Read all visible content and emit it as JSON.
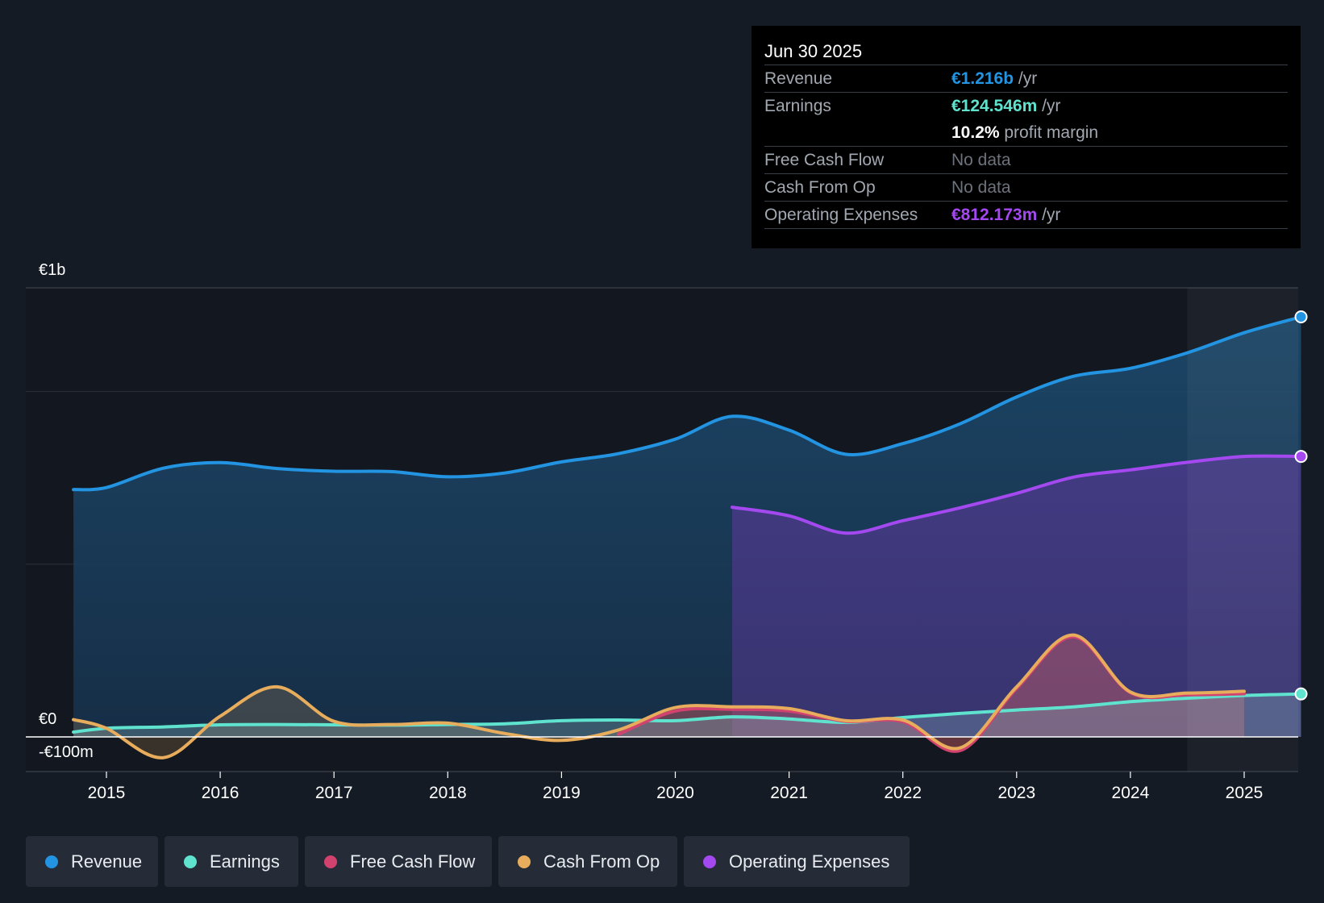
{
  "colors": {
    "background": "#151b24",
    "revenue": "#2394e2",
    "earnings": "#5fe3cf",
    "free_cash_flow": "#d2426f",
    "cash_from_op": "#e8ad5c",
    "operating_expenses": "#a449f0"
  },
  "tooltip": {
    "date": "Jun 30 2025",
    "revenue_label": "Revenue",
    "revenue_value": "€1.216b",
    "revenue_unit": " /yr",
    "earnings_label": "Earnings",
    "earnings_value": "€124.546m",
    "earnings_unit": " /yr",
    "margin_value": "10.2%",
    "margin_label": " profit margin",
    "fcf_label": "Free Cash Flow",
    "fcf_value": "No data",
    "cfo_label": "Cash From Op",
    "cfo_value": "No data",
    "opex_label": "Operating Expenses",
    "opex_value": "€812.173m",
    "opex_unit": " /yr"
  },
  "legend": [
    {
      "label": "Revenue",
      "color": "#2394e2"
    },
    {
      "label": "Earnings",
      "color": "#5fe3cf"
    },
    {
      "label": "Free Cash Flow",
      "color": "#d2426f"
    },
    {
      "label": "Cash From Op",
      "color": "#e8ad5c"
    },
    {
      "label": "Operating Expenses",
      "color": "#a449f0"
    }
  ],
  "chart_data": {
    "type": "area",
    "title": "",
    "xlabel": "",
    "ylabel": "",
    "y_tick_labels": [
      {
        "value": 1300,
        "label": "€1b"
      },
      {
        "value": 0,
        "label": "€0"
      },
      {
        "value": -100,
        "label": "-€100m"
      }
    ],
    "ylim": [
      -100,
      1300
    ],
    "xlim": [
      2014.25,
      2025.5
    ],
    "x_ticks": [
      2015,
      2016,
      2017,
      2018,
      2019,
      2020,
      2021,
      2022,
      2023,
      2024,
      2025
    ],
    "x_tick_labels": [
      "2015",
      "2016",
      "2017",
      "2018",
      "2019",
      "2020",
      "2021",
      "2022",
      "2023",
      "2024",
      "2025"
    ],
    "forecast_start": 2024.5,
    "series": [
      {
        "name": "Revenue",
        "key": "revenue",
        "x": [
          2014.71,
          2015.0,
          2015.5,
          2016.0,
          2016.5,
          2017.0,
          2017.5,
          2018.0,
          2018.5,
          2019.0,
          2019.5,
          2020.0,
          2020.5,
          2021.0,
          2021.5,
          2022.0,
          2022.5,
          2023.0,
          2023.5,
          2024.0,
          2024.5,
          2025.0,
          2025.5
        ],
        "values": [
          716,
          722,
          778,
          794,
          777,
          769,
          768,
          753,
          764,
          796,
          820,
          862,
          928,
          888,
          818,
          849,
          906,
          984,
          1044,
          1067,
          1112,
          1170,
          1216
        ]
      },
      {
        "name": "Earnings",
        "key": "earnings",
        "x": [
          2014.71,
          2015.0,
          2015.5,
          2016.0,
          2016.5,
          2017.0,
          2017.5,
          2018.0,
          2018.5,
          2019.0,
          2019.5,
          2020.0,
          2020.5,
          2021.0,
          2021.5,
          2022.0,
          2022.5,
          2023.0,
          2023.5,
          2024.0,
          2024.5,
          2025.0,
          2025.5
        ],
        "values": [
          14,
          25,
          29,
          35,
          36,
          35,
          34,
          36,
          38,
          47,
          49,
          47,
          58,
          52,
          42,
          56,
          68,
          78,
          87,
          102,
          112,
          120,
          124.5
        ]
      },
      {
        "name": "Free Cash Flow",
        "key": "fcf",
        "x": [
          2019.5,
          2020.0,
          2020.5,
          2021.0,
          2021.5,
          2022.0,
          2022.5,
          2023.0,
          2023.5,
          2024.0,
          2024.5,
          2025.0
        ],
        "values": [
          8,
          75,
          80,
          75,
          45,
          44,
          -40,
          140,
          290,
          128,
          122,
          125
        ]
      },
      {
        "name": "Cash From Op",
        "key": "cfo",
        "x": [
          2014.71,
          2015.0,
          2015.5,
          2016.0,
          2016.5,
          2017.0,
          2017.5,
          2018.0,
          2018.5,
          2019.0,
          2019.5,
          2020.0,
          2020.5,
          2021.0,
          2021.5,
          2022.0,
          2022.5,
          2023.0,
          2023.5,
          2024.0,
          2024.5,
          2025.0
        ],
        "values": [
          50,
          25,
          -60,
          60,
          145,
          45,
          36,
          40,
          10,
          -10,
          20,
          85,
          87,
          82,
          47,
          49,
          -32,
          145,
          295,
          130,
          127,
          132
        ]
      },
      {
        "name": "Operating Expenses",
        "key": "opex",
        "x": [
          2020.5,
          2021.0,
          2021.5,
          2022.0,
          2022.5,
          2023.0,
          2023.5,
          2024.0,
          2024.5,
          2025.0,
          2025.5
        ],
        "values": [
          665,
          640,
          590,
          626,
          663,
          705,
          752,
          773,
          795,
          812,
          812
        ]
      }
    ]
  }
}
